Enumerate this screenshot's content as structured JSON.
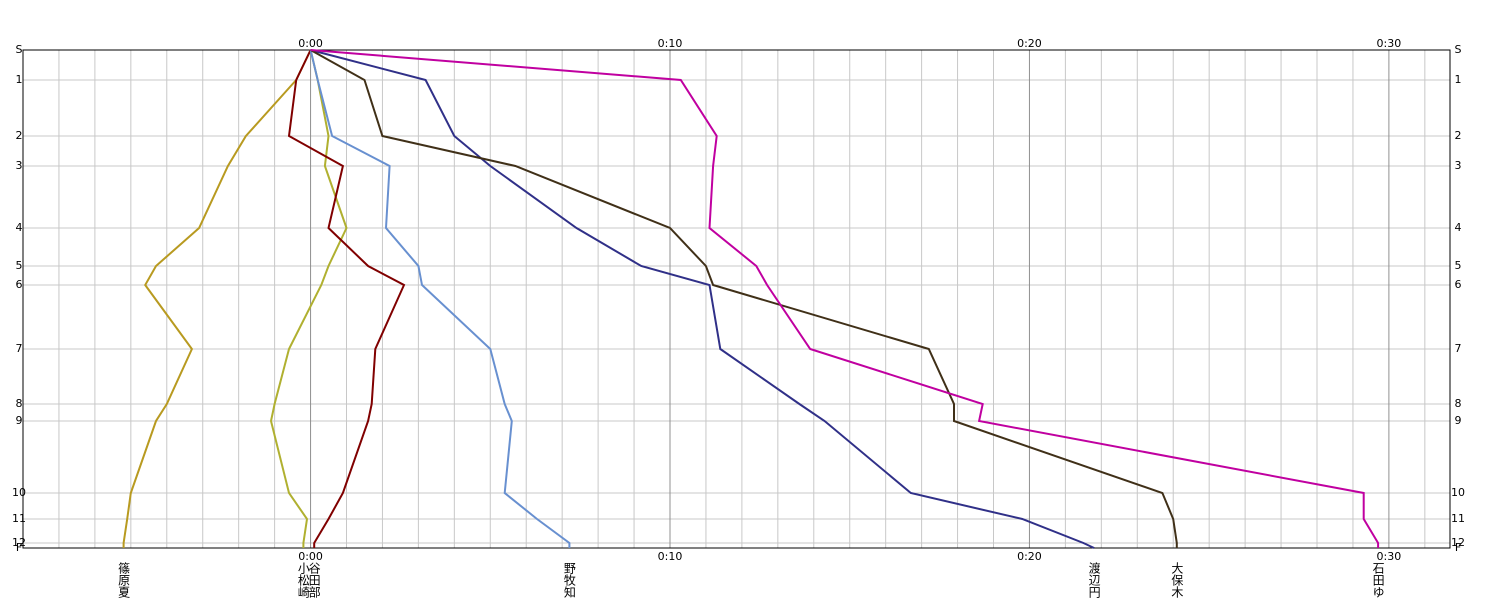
{
  "chart_data": {
    "type": "line",
    "controls": [
      "S",
      "1",
      "2",
      "3",
      "4",
      "5",
      "6",
      "7",
      "8",
      "9",
      "10",
      "11",
      "12",
      "F"
    ],
    "control_positions": [
      0,
      30,
      86,
      116,
      178,
      216,
      235,
      299,
      354,
      371,
      443,
      469,
      493,
      498
    ],
    "ylim": [
      0,
      498
    ],
    "xlim": [
      -8,
      31.7
    ],
    "xticks": [
      {
        "value": 0,
        "label": "0:00"
      },
      {
        "value": 10,
        "label": "0:10"
      },
      {
        "value": 20,
        "label": "0:20"
      },
      {
        "value": 30,
        "label": "0:30"
      }
    ],
    "minor_xticks": [
      -8,
      -7,
      -6,
      -5,
      -4,
      -3,
      -2,
      -1,
      1,
      2,
      3,
      4,
      5,
      6,
      7,
      8,
      9,
      11,
      12,
      13,
      14,
      15,
      16,
      17,
      18,
      19,
      21,
      22,
      23,
      24,
      25,
      26,
      27,
      28,
      29,
      31
    ],
    "grid": true,
    "series": [
      {
        "name": "篠原夏",
        "color": "#b89a20",
        "values": [
          0,
          -0.4,
          -1.8,
          -2.3,
          -3.1,
          -4.3,
          -4.6,
          -3.3,
          -4.0,
          -4.3,
          -5.0,
          -5.1,
          -5.2,
          -5.2
        ]
      },
      {
        "name": "小松崎",
        "color": "#b0b030",
        "values": [
          0,
          0.2,
          0.5,
          0.4,
          1.0,
          0.5,
          0.3,
          -0.6,
          -1.0,
          -1.1,
          -0.6,
          -0.1,
          -0.2,
          -0.2
        ]
      },
      {
        "name": "谷田部",
        "color": "#800000",
        "values": [
          0,
          -0.4,
          -0.6,
          0.9,
          0.5,
          1.6,
          2.6,
          1.8,
          1.7,
          1.6,
          0.9,
          0.5,
          0.1,
          0.1
        ]
      },
      {
        "name": "野牧知",
        "color": "#6890d0",
        "values": [
          0,
          0.2,
          0.6,
          2.2,
          2.1,
          3.0,
          3.1,
          5.0,
          5.4,
          5.6,
          5.4,
          6.3,
          7.2,
          7.2
        ]
      },
      {
        "name": "渡辺円",
        "color": "#303088",
        "values": [
          0,
          3.2,
          4.0,
          5.0,
          7.4,
          9.2,
          11.1,
          11.4,
          13.6,
          14.3,
          16.7,
          19.8,
          21.5,
          21.8
        ]
      },
      {
        "name": "大保木",
        "color": "#403018",
        "values": [
          0,
          1.5,
          2.0,
          5.7,
          10.0,
          11.0,
          11.2,
          17.2,
          17.9,
          17.9,
          23.7,
          24.0,
          24.1,
          24.1
        ]
      },
      {
        "name": "石田ゆ",
        "color": "#c000a0",
        "values": [
          0,
          10.3,
          11.3,
          11.2,
          11.1,
          12.4,
          12.7,
          13.9,
          18.7,
          18.6,
          29.3,
          29.3,
          29.7,
          29.7
        ]
      }
    ]
  }
}
